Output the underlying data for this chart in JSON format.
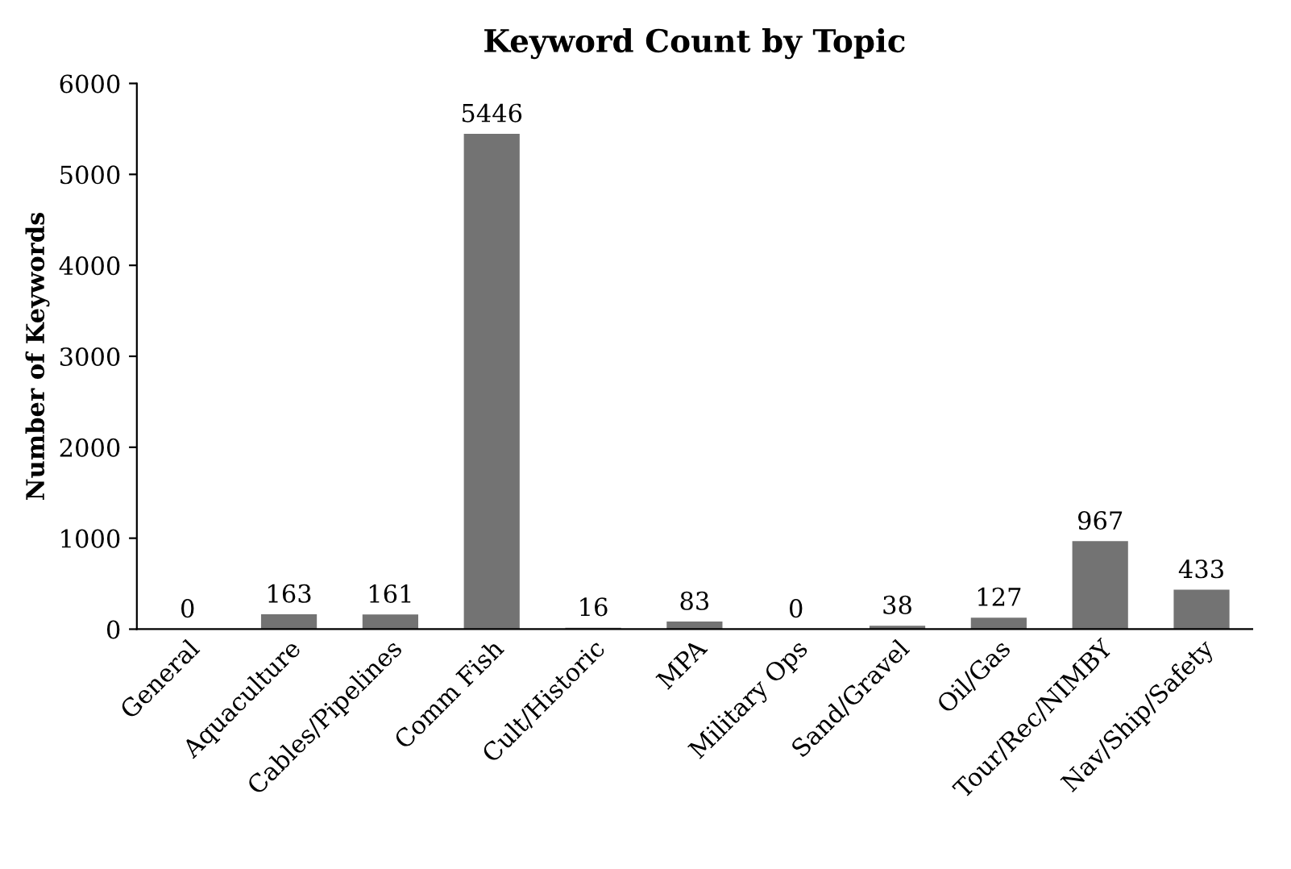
{
  "chart_data": {
    "type": "bar",
    "title": "Keyword Count by Topic",
    "ylabel": "Number of Keywords",
    "categories": [
      "General",
      "Aquaculture",
      "Cables/Pipelines",
      "Comm Fish",
      "Cult/Historic",
      "MPA",
      "Military Ops",
      "Sand/Gravel",
      "Oil/Gas",
      "Tour/Rec/NIMBY",
      "Nav/Ship/Safety"
    ],
    "values": [
      0,
      163,
      161,
      5446,
      16,
      83,
      0,
      38,
      127,
      967,
      433
    ],
    "color": "#737373",
    "ylim": [
      0,
      6000
    ],
    "yticks": [
      0,
      1000,
      2000,
      3000,
      4000,
      5000,
      6000
    ],
    "grid": false,
    "legend": false,
    "data_labels": true
  }
}
